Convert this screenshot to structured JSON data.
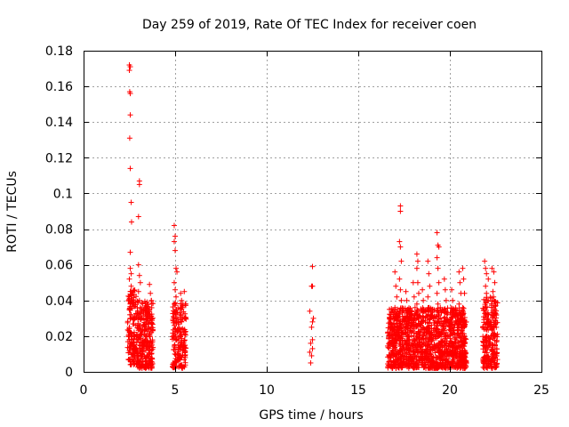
{
  "chart_data": {
    "type": "scatter",
    "title": "Day 259 of 2019, Rate Of TEC Index for receiver coen",
    "xlabel": "GPS time / hours",
    "ylabel": "ROTI / TECUs",
    "xlim": [
      0,
      25
    ],
    "ylim": [
      0,
      0.18
    ],
    "xticks": [
      0,
      5,
      10,
      15,
      20,
      25
    ],
    "yticks": [
      0,
      0.02,
      0.04,
      0.06,
      0.08,
      0.1,
      0.12,
      0.14,
      0.16,
      0.18
    ],
    "xtick_labels": [
      "0",
      "5",
      "10",
      "15",
      "20",
      "25"
    ],
    "ytick_labels": [
      "0",
      "0.02",
      "0.04",
      "0.06",
      "0.08",
      "0.1",
      "0.12",
      "0.14",
      "0.16",
      "0.18"
    ],
    "grid": true,
    "marker": "+",
    "marker_color": "#ff0000",
    "series": [
      {
        "points": [
          [
            2.5,
            0.172
          ],
          [
            2.55,
            0.171
          ],
          [
            2.5,
            0.169
          ],
          [
            2.52,
            0.157
          ],
          [
            2.55,
            0.156
          ],
          [
            2.55,
            0.144
          ],
          [
            2.52,
            0.131
          ],
          [
            2.55,
            0.114
          ],
          [
            3.05,
            0.107
          ],
          [
            3.05,
            0.105
          ],
          [
            2.6,
            0.095
          ],
          [
            2.62,
            0.084
          ],
          [
            3.0,
            0.087
          ],
          [
            2.55,
            0.067
          ],
          [
            2.55,
            0.058
          ],
          [
            2.6,
            0.055
          ],
          [
            2.5,
            0.052
          ],
          [
            2.6,
            0.048
          ],
          [
            2.55,
            0.045
          ],
          [
            2.5,
            0.042
          ],
          [
            2.6,
            0.04
          ],
          [
            2.55,
            0.038
          ],
          [
            2.5,
            0.035
          ],
          [
            2.6,
            0.032
          ],
          [
            2.55,
            0.03
          ],
          [
            2.5,
            0.025
          ],
          [
            2.6,
            0.022
          ],
          [
            2.45,
            0.02
          ],
          [
            2.5,
            0.018
          ],
          [
            2.6,
            0.016
          ],
          [
            2.55,
            0.014
          ],
          [
            2.5,
            0.012
          ],
          [
            2.7,
            0.01
          ],
          [
            2.65,
            0.008
          ],
          [
            2.55,
            0.006
          ],
          [
            2.6,
            0.004
          ],
          [
            2.8,
            0.012
          ],
          [
            2.75,
            0.018
          ],
          [
            3.0,
            0.06
          ],
          [
            3.05,
            0.054
          ],
          [
            3.1,
            0.05
          ],
          [
            3.0,
            0.045
          ],
          [
            3.05,
            0.04
          ],
          [
            3.1,
            0.036
          ],
          [
            2.95,
            0.033
          ],
          [
            3.1,
            0.03
          ],
          [
            3.0,
            0.027
          ],
          [
            3.05,
            0.024
          ],
          [
            3.1,
            0.021
          ],
          [
            2.95,
            0.018
          ],
          [
            3.05,
            0.015
          ],
          [
            3.1,
            0.012
          ],
          [
            3.0,
            0.009
          ],
          [
            3.05,
            0.006
          ],
          [
            3.2,
            0.034
          ],
          [
            3.25,
            0.03
          ],
          [
            3.3,
            0.026
          ],
          [
            3.2,
            0.022
          ],
          [
            3.25,
            0.018
          ],
          [
            3.3,
            0.014
          ],
          [
            3.2,
            0.01
          ],
          [
            3.25,
            0.006
          ],
          [
            3.4,
            0.036
          ],
          [
            3.45,
            0.031
          ],
          [
            3.5,
            0.028
          ],
          [
            3.4,
            0.024
          ],
          [
            3.45,
            0.02
          ],
          [
            3.5,
            0.016
          ],
          [
            3.4,
            0.012
          ],
          [
            3.45,
            0.008
          ],
          [
            3.5,
            0.004
          ],
          [
            3.6,
            0.049
          ],
          [
            3.65,
            0.044
          ],
          [
            3.7,
            0.04
          ],
          [
            3.6,
            0.035
          ],
          [
            3.65,
            0.03
          ],
          [
            3.7,
            0.025
          ],
          [
            3.6,
            0.02
          ],
          [
            3.65,
            0.015
          ],
          [
            3.7,
            0.01
          ],
          [
            3.6,
            0.005
          ],
          [
            4.95,
            0.082
          ],
          [
            5.0,
            0.076
          ],
          [
            4.95,
            0.073
          ],
          [
            5.0,
            0.068
          ],
          [
            5.05,
            0.058
          ],
          [
            5.1,
            0.056
          ],
          [
            4.95,
            0.05
          ],
          [
            5.0,
            0.046
          ],
          [
            5.05,
            0.042
          ],
          [
            4.95,
            0.038
          ],
          [
            5.0,
            0.034
          ],
          [
            5.05,
            0.03
          ],
          [
            4.95,
            0.026
          ],
          [
            5.0,
            0.022
          ],
          [
            5.05,
            0.018
          ],
          [
            4.95,
            0.014
          ],
          [
            5.0,
            0.01
          ],
          [
            5.05,
            0.006
          ],
          [
            4.95,
            0.004
          ],
          [
            5.3,
            0.044
          ],
          [
            5.35,
            0.04
          ],
          [
            5.4,
            0.036
          ],
          [
            5.3,
            0.032
          ],
          [
            5.35,
            0.028
          ],
          [
            5.4,
            0.024
          ],
          [
            5.3,
            0.02
          ],
          [
            5.35,
            0.016
          ],
          [
            5.4,
            0.012
          ],
          [
            5.3,
            0.008
          ],
          [
            5.35,
            0.004
          ],
          [
            5.5,
            0.045
          ],
          [
            5.55,
            0.038
          ],
          [
            5.5,
            0.03
          ],
          [
            5.55,
            0.022
          ],
          [
            5.5,
            0.014
          ],
          [
            5.55,
            0.008
          ],
          [
            12.5,
            0.059
          ],
          [
            12.45,
            0.048
          ],
          [
            12.5,
            0.048
          ],
          [
            12.35,
            0.034
          ],
          [
            12.55,
            0.03
          ],
          [
            12.5,
            0.028
          ],
          [
            12.45,
            0.025
          ],
          [
            12.5,
            0.018
          ],
          [
            12.4,
            0.016
          ],
          [
            12.5,
            0.013
          ],
          [
            12.35,
            0.011
          ],
          [
            12.45,
            0.009
          ],
          [
            12.4,
            0.005
          ],
          [
            16.7,
            0.035
          ],
          [
            16.75,
            0.03
          ],
          [
            16.8,
            0.025
          ],
          [
            16.7,
            0.02
          ],
          [
            16.75,
            0.015
          ],
          [
            16.8,
            0.01
          ],
          [
            16.7,
            0.006
          ],
          [
            17.0,
            0.056
          ],
          [
            17.05,
            0.048
          ],
          [
            17.1,
            0.042
          ],
          [
            17.0,
            0.036
          ],
          [
            17.05,
            0.03
          ],
          [
            17.1,
            0.024
          ],
          [
            17.0,
            0.018
          ],
          [
            17.05,
            0.012
          ],
          [
            17.1,
            0.007
          ],
          [
            17.3,
            0.093
          ],
          [
            17.3,
            0.09
          ],
          [
            17.25,
            0.073
          ],
          [
            17.3,
            0.07
          ],
          [
            17.35,
            0.062
          ],
          [
            17.25,
            0.052
          ],
          [
            17.3,
            0.046
          ],
          [
            17.35,
            0.04
          ],
          [
            17.25,
            0.034
          ],
          [
            17.3,
            0.028
          ],
          [
            17.35,
            0.022
          ],
          [
            17.25,
            0.016
          ],
          [
            17.3,
            0.01
          ],
          [
            17.35,
            0.006
          ],
          [
            17.6,
            0.045
          ],
          [
            17.65,
            0.04
          ],
          [
            17.7,
            0.035
          ],
          [
            17.6,
            0.03
          ],
          [
            17.65,
            0.025
          ],
          [
            17.7,
            0.02
          ],
          [
            17.6,
            0.015
          ],
          [
            17.65,
            0.01
          ],
          [
            17.7,
            0.005
          ],
          [
            18.0,
            0.05
          ],
          [
            18.05,
            0.042
          ],
          [
            18.1,
            0.036
          ],
          [
            18.0,
            0.03
          ],
          [
            18.05,
            0.024
          ],
          [
            18.1,
            0.018
          ],
          [
            18.0,
            0.012
          ],
          [
            18.05,
            0.006
          ],
          [
            18.2,
            0.066
          ],
          [
            18.25,
            0.062
          ],
          [
            18.2,
            0.058
          ],
          [
            18.25,
            0.05
          ],
          [
            18.3,
            0.044
          ],
          [
            18.2,
            0.038
          ],
          [
            18.25,
            0.032
          ],
          [
            18.3,
            0.026
          ],
          [
            18.2,
            0.02
          ],
          [
            18.25,
            0.014
          ],
          [
            18.3,
            0.008
          ],
          [
            18.5,
            0.046
          ],
          [
            18.55,
            0.04
          ],
          [
            18.6,
            0.034
          ],
          [
            18.5,
            0.028
          ],
          [
            18.55,
            0.022
          ],
          [
            18.6,
            0.016
          ],
          [
            18.5,
            0.01
          ],
          [
            18.55,
            0.004
          ],
          [
            18.8,
            0.062
          ],
          [
            18.85,
            0.055
          ],
          [
            18.9,
            0.048
          ],
          [
            18.8,
            0.042
          ],
          [
            18.85,
            0.036
          ],
          [
            18.9,
            0.03
          ],
          [
            18.8,
            0.024
          ],
          [
            18.85,
            0.018
          ],
          [
            18.9,
            0.012
          ],
          [
            18.8,
            0.006
          ],
          [
            19.3,
            0.078
          ],
          [
            19.35,
            0.071
          ],
          [
            19.4,
            0.07
          ],
          [
            19.3,
            0.064
          ],
          [
            19.35,
            0.058
          ],
          [
            19.4,
            0.05
          ],
          [
            19.3,
            0.044
          ],
          [
            19.35,
            0.038
          ],
          [
            19.4,
            0.032
          ],
          [
            19.3,
            0.026
          ],
          [
            19.35,
            0.02
          ],
          [
            19.4,
            0.014
          ],
          [
            19.3,
            0.008
          ],
          [
            19.35,
            0.004
          ],
          [
            19.7,
            0.052
          ],
          [
            19.75,
            0.046
          ],
          [
            19.8,
            0.04
          ],
          [
            19.7,
            0.034
          ],
          [
            19.75,
            0.028
          ],
          [
            19.8,
            0.022
          ],
          [
            19.7,
            0.016
          ],
          [
            19.75,
            0.01
          ],
          [
            19.8,
            0.005
          ],
          [
            20.1,
            0.046
          ],
          [
            20.15,
            0.04
          ],
          [
            20.2,
            0.034
          ],
          [
            20.1,
            0.028
          ],
          [
            20.15,
            0.022
          ],
          [
            20.2,
            0.016
          ],
          [
            20.1,
            0.01
          ],
          [
            20.15,
            0.006
          ],
          [
            20.5,
            0.056
          ],
          [
            20.55,
            0.05
          ],
          [
            20.6,
            0.044
          ],
          [
            20.5,
            0.038
          ],
          [
            20.55,
            0.032
          ],
          [
            20.6,
            0.026
          ],
          [
            20.5,
            0.02
          ],
          [
            20.55,
            0.014
          ],
          [
            20.6,
            0.008
          ],
          [
            20.7,
            0.058
          ],
          [
            20.75,
            0.052
          ],
          [
            20.8,
            0.044
          ],
          [
            20.7,
            0.036
          ],
          [
            20.75,
            0.028
          ],
          [
            20.8,
            0.02
          ],
          [
            20.7,
            0.012
          ],
          [
            20.75,
            0.006
          ],
          [
            21.9,
            0.062
          ],
          [
            21.95,
            0.058
          ],
          [
            22.0,
            0.055
          ],
          [
            22.1,
            0.052
          ],
          [
            21.95,
            0.048
          ],
          [
            22.0,
            0.044
          ],
          [
            22.1,
            0.04
          ],
          [
            21.95,
            0.036
          ],
          [
            22.0,
            0.032
          ],
          [
            22.1,
            0.028
          ],
          [
            21.95,
            0.024
          ],
          [
            22.0,
            0.02
          ],
          [
            22.1,
            0.016
          ],
          [
            21.95,
            0.012
          ],
          [
            22.0,
            0.008
          ],
          [
            22.1,
            0.004
          ],
          [
            22.3,
            0.058
          ],
          [
            22.4,
            0.056
          ],
          [
            22.45,
            0.05
          ],
          [
            22.35,
            0.045
          ],
          [
            22.4,
            0.04
          ],
          [
            22.45,
            0.035
          ],
          [
            22.35,
            0.03
          ],
          [
            22.4,
            0.025
          ],
          [
            22.45,
            0.02
          ],
          [
            22.35,
            0.015
          ],
          [
            22.4,
            0.01
          ],
          [
            22.45,
            0.005
          ]
        ]
      }
    ],
    "dense_clusters": [
      {
        "x": [
          2.4,
          2.9
        ],
        "y": [
          0.004,
          0.046
        ],
        "n": 130
      },
      {
        "x": [
          2.9,
          3.8
        ],
        "y": [
          0.002,
          0.04
        ],
        "n": 260
      },
      {
        "x": [
          4.85,
          5.6
        ],
        "y": [
          0.002,
          0.04
        ],
        "n": 170
      },
      {
        "x": [
          16.6,
          20.9
        ],
        "y": [
          0.002,
          0.036
        ],
        "n": 1300
      },
      {
        "x": [
          21.8,
          22.6
        ],
        "y": [
          0.002,
          0.042
        ],
        "n": 240
      }
    ]
  }
}
